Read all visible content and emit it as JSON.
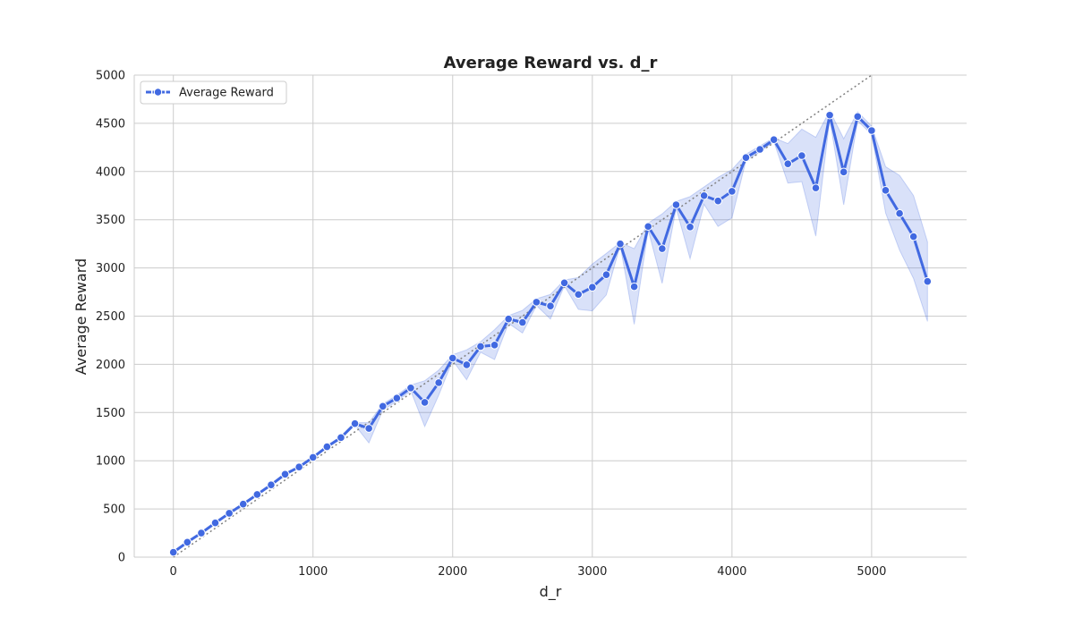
{
  "chart_data": {
    "type": "line",
    "title": "Average Reward vs. d_r",
    "xlabel": "d_r",
    "ylabel": "Average Reward",
    "xlim": [
      -280,
      5680
    ],
    "ylim": [
      0,
      5000
    ],
    "xticks": [
      0,
      1000,
      2000,
      3000,
      4000,
      5000
    ],
    "yticks": [
      0,
      500,
      1000,
      1500,
      2000,
      2500,
      3000,
      3500,
      4000,
      4500,
      5000
    ],
    "xtick_labels": [
      "0",
      "1000",
      "2000",
      "3000",
      "4000",
      "5000"
    ],
    "ytick_labels": [
      "0",
      "500",
      "1000",
      "1500",
      "2000",
      "2500",
      "3000",
      "3500",
      "4000",
      "4500",
      "5000"
    ],
    "grid": true,
    "legend": {
      "position": "top-left",
      "entries": [
        "Average Reward"
      ]
    },
    "reference_line": {
      "style": "dotted",
      "color": "#808080",
      "x": [
        0,
        5000
      ],
      "y": [
        0,
        5000
      ]
    },
    "series": [
      {
        "name": "Average Reward",
        "color": "#4169e1",
        "marker": "circle",
        "x": [
          0,
          100,
          200,
          300,
          400,
          500,
          600,
          700,
          800,
          900,
          1000,
          1100,
          1200,
          1300,
          1400,
          1500,
          1600,
          1700,
          1800,
          1900,
          2000,
          2100,
          2200,
          2300,
          2400,
          2500,
          2600,
          2700,
          2800,
          2900,
          3000,
          3100,
          3200,
          3300,
          3400,
          3500,
          3600,
          3700,
          3800,
          3900,
          4000,
          4100,
          4200,
          4300,
          4400,
          4500,
          4600,
          4700,
          4800,
          4900,
          5000,
          5100,
          5200,
          5300,
          5400
        ],
        "y": [
          50,
          155,
          250,
          355,
          455,
          550,
          650,
          750,
          860,
          935,
          1035,
          1145,
          1240,
          1385,
          1335,
          1565,
          1650,
          1755,
          1605,
          1810,
          2065,
          1995,
          2185,
          2200,
          2470,
          2435,
          2645,
          2605,
          2845,
          2725,
          2800,
          2930,
          3250,
          2805,
          3430,
          3200,
          3655,
          3425,
          3750,
          3695,
          3795,
          4145,
          4230,
          4330,
          4080,
          4165,
          3830,
          4585,
          3995,
          4570,
          4425,
          3805,
          3565,
          3325,
          2860
        ],
        "ci_upper": [
          60,
          165,
          260,
          365,
          465,
          560,
          660,
          760,
          870,
          945,
          1045,
          1155,
          1255,
          1395,
          1395,
          1590,
          1680,
          1785,
          1830,
          1940,
          2100,
          2150,
          2235,
          2360,
          2505,
          2560,
          2680,
          2725,
          2875,
          2900,
          3040,
          3150,
          3265,
          3200,
          3465,
          3560,
          3690,
          3740,
          3840,
          3940,
          4020,
          4180,
          4265,
          4350,
          4290,
          4440,
          4355,
          4630,
          4340,
          4620,
          4470,
          4050,
          3960,
          3750,
          3270
        ],
        "ci_lower": [
          40,
          145,
          240,
          345,
          445,
          540,
          640,
          740,
          850,
          925,
          1025,
          1135,
          1225,
          1370,
          1185,
          1525,
          1615,
          1725,
          1355,
          1680,
          2040,
          1840,
          2125,
          2050,
          2425,
          2325,
          2610,
          2470,
          2815,
          2570,
          2555,
          2720,
          3235,
          2415,
          3395,
          2840,
          3620,
          3095,
          3660,
          3430,
          3520,
          4115,
          4200,
          4310,
          3880,
          3895,
          3330,
          4545,
          3655,
          4525,
          4385,
          3570,
          3185,
          2890,
          2445
        ]
      }
    ]
  }
}
